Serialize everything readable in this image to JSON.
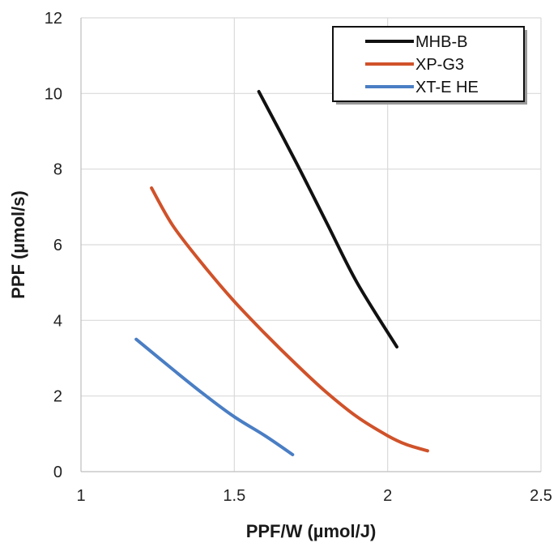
{
  "chart_data": {
    "type": "line",
    "xlabel": "PPF/W (µmol/J)",
    "ylabel": "PPF (µmol/s)",
    "xlim": [
      1,
      2.5
    ],
    "ylim": [
      0,
      12
    ],
    "x_ticks": [
      "1",
      "1.5",
      "2",
      "2.5"
    ],
    "y_ticks": [
      "0",
      "2",
      "4",
      "6",
      "8",
      "10",
      "12"
    ],
    "grid": true,
    "legend_position": "top-right",
    "series": [
      {
        "name": "MHB-B",
        "color": "#111111",
        "x": [
          1.58,
          1.7,
          1.8,
          1.9,
          2.03
        ],
        "y": [
          10.05,
          8.2,
          6.6,
          5.0,
          3.3
        ]
      },
      {
        "name": "XP-G3",
        "color": "#d0522a",
        "x": [
          1.23,
          1.3,
          1.4,
          1.5,
          1.6,
          1.7,
          1.8,
          1.9,
          2.0,
          2.06,
          2.13
        ],
        "y": [
          7.5,
          6.5,
          5.45,
          4.5,
          3.65,
          2.85,
          2.1,
          1.45,
          0.95,
          0.72,
          0.55
        ]
      },
      {
        "name": "XT-E HE",
        "color": "#4a7ec4",
        "x": [
          1.18,
          1.3,
          1.4,
          1.5,
          1.6,
          1.69
        ],
        "y": [
          3.5,
          2.7,
          2.05,
          1.45,
          0.95,
          0.45
        ]
      }
    ]
  }
}
